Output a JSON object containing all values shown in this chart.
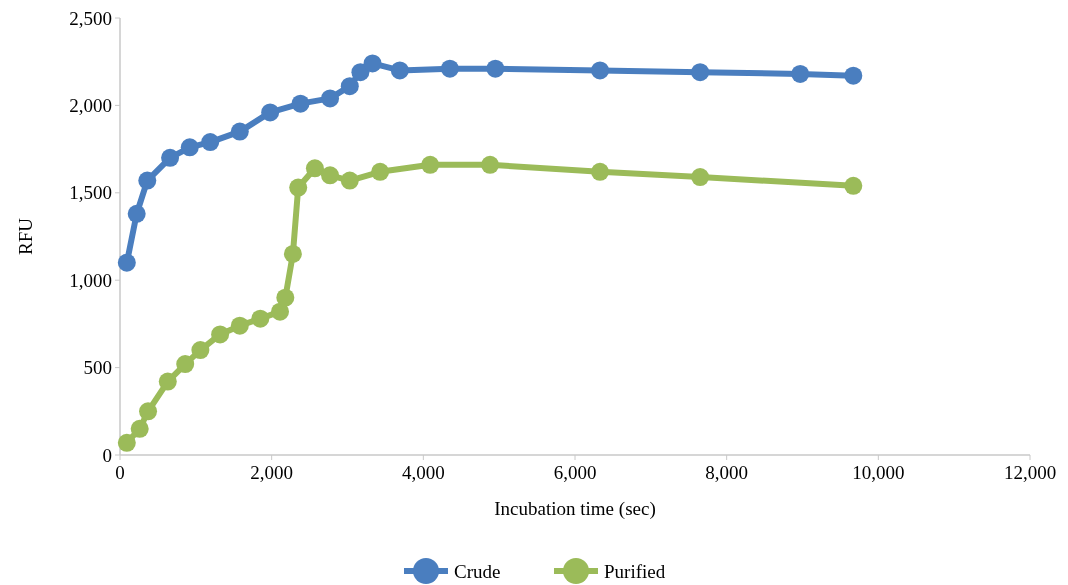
{
  "chart_data": {
    "type": "line",
    "xlabel": "Incubation time (sec)",
    "ylabel": "RFU",
    "xlim": [
      0,
      12000
    ],
    "xticks": [
      {
        "value": 0,
        "label": "0"
      },
      {
        "value": 2000,
        "label": "2,000"
      },
      {
        "value": 4000,
        "label": "4,000"
      },
      {
        "value": 6000,
        "label": "6,000"
      },
      {
        "value": 8000,
        "label": "8,000"
      },
      {
        "value": 10000,
        "label": "10,000"
      },
      {
        "value": 12000,
        "label": "12,000"
      }
    ],
    "ylim": [
      0,
      2500
    ],
    "yticks": [
      {
        "value": 0,
        "label": "0"
      },
      {
        "value": 500,
        "label": "500"
      },
      {
        "value": 1000,
        "label": "1,000"
      },
      {
        "value": 1500,
        "label": "1,500"
      },
      {
        "value": 2000,
        "label": "2,000"
      },
      {
        "value": 2500,
        "label": "2,500"
      }
    ],
    "legend": "bottom",
    "marker": "circle",
    "series": [
      {
        "name": "Crude",
        "color": "#4a7ebf",
        "x": [
          90,
          220,
          360,
          660,
          920,
          1190,
          1580,
          1980,
          2380,
          2770,
          3030,
          3170,
          3330,
          3690,
          4350,
          4950,
          6330,
          7650,
          8970,
          9670
        ],
        "values": [
          1100,
          1380,
          1570,
          1700,
          1760,
          1790,
          1850,
          1960,
          2010,
          2040,
          2110,
          2190,
          2240,
          2200,
          2210,
          2210,
          2200,
          2190,
          2180,
          2170
        ]
      },
      {
        "name": "Purified",
        "color": "#9bbb59",
        "x": [
          90,
          260,
          370,
          630,
          860,
          1060,
          1320,
          1580,
          1850,
          2110,
          2180,
          2280,
          2350,
          2570,
          2770,
          3030,
          3430,
          4090,
          4880,
          6330,
          7650,
          9670
        ],
        "values": [
          70,
          150,
          250,
          420,
          520,
          600,
          690,
          740,
          780,
          820,
          900,
          1150,
          1530,
          1640,
          1600,
          1570,
          1620,
          1660,
          1660,
          1620,
          1590,
          1540
        ]
      }
    ]
  }
}
